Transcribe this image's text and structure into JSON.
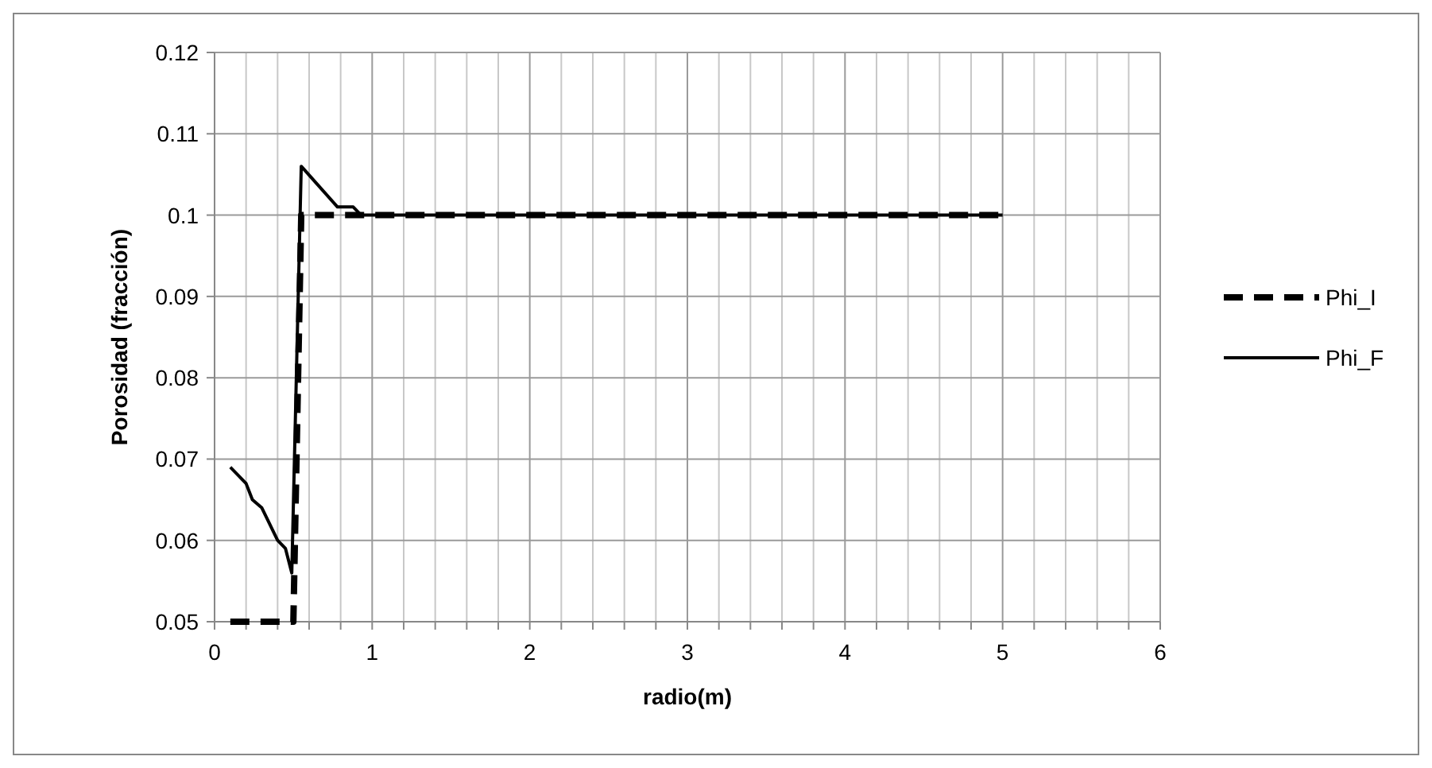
{
  "chart_data": {
    "type": "line",
    "xlabel": "radio(m)",
    "ylabel": "Porosidad (fracción)",
    "xlim": [
      0,
      6
    ],
    "ylim": [
      0.05,
      0.12
    ],
    "xticks": [
      0,
      {
        "value": 0.2,
        "label": null
      },
      {
        "value": 0.4,
        "label": null
      },
      {
        "value": 0.6,
        "label": null
      },
      {
        "value": 0.8,
        "label": null
      },
      1,
      {
        "value": 1.2,
        "label": null
      },
      {
        "value": 1.4,
        "label": null
      },
      {
        "value": 1.6,
        "label": null
      },
      {
        "value": 1.8,
        "label": null
      },
      2,
      {
        "value": 2.2,
        "label": null
      },
      {
        "value": 2.4,
        "label": null
      },
      {
        "value": 2.6,
        "label": null
      },
      {
        "value": 2.8,
        "label": null
      },
      3,
      {
        "value": 3.2,
        "label": null
      },
      {
        "value": 3.4,
        "label": null
      },
      {
        "value": 3.6,
        "label": null
      },
      {
        "value": 3.8,
        "label": null
      },
      4,
      {
        "value": 4.2,
        "label": null
      },
      {
        "value": 4.4,
        "label": null
      },
      {
        "value": 4.6,
        "label": null
      },
      {
        "value": 4.8,
        "label": null
      },
      5,
      {
        "value": 5.2,
        "label": null
      },
      {
        "value": 5.4,
        "label": null
      },
      {
        "value": 5.6,
        "label": null
      },
      {
        "value": 5.8,
        "label": null
      },
      6
    ],
    "yticks": [
      0.05,
      0.06,
      0.07,
      0.08,
      0.09,
      0.1,
      0.11,
      0.12
    ],
    "grid": true,
    "legend": "right",
    "marker": "none",
    "series": [
      {
        "name": "Phi_I",
        "color": "#000000",
        "line_style": "dashed",
        "x": [
          0.1,
          0.5,
          0.55,
          5
        ],
        "values": [
          0.05,
          0.05,
          0.1,
          0.1
        ]
      },
      {
        "name": "Phi_F",
        "color": "#000000",
        "line_style": "solid",
        "x": [
          0.1,
          0.2,
          0.24,
          0.3,
          0.4,
          0.45,
          0.49,
          0.55,
          0.78,
          0.88,
          0.93,
          5
        ],
        "values": [
          0.069,
          0.067,
          0.065,
          0.064,
          0.06,
          0.059,
          0.056,
          0.106,
          0.101,
          0.101,
          0.1,
          0.1
        ]
      }
    ]
  }
}
